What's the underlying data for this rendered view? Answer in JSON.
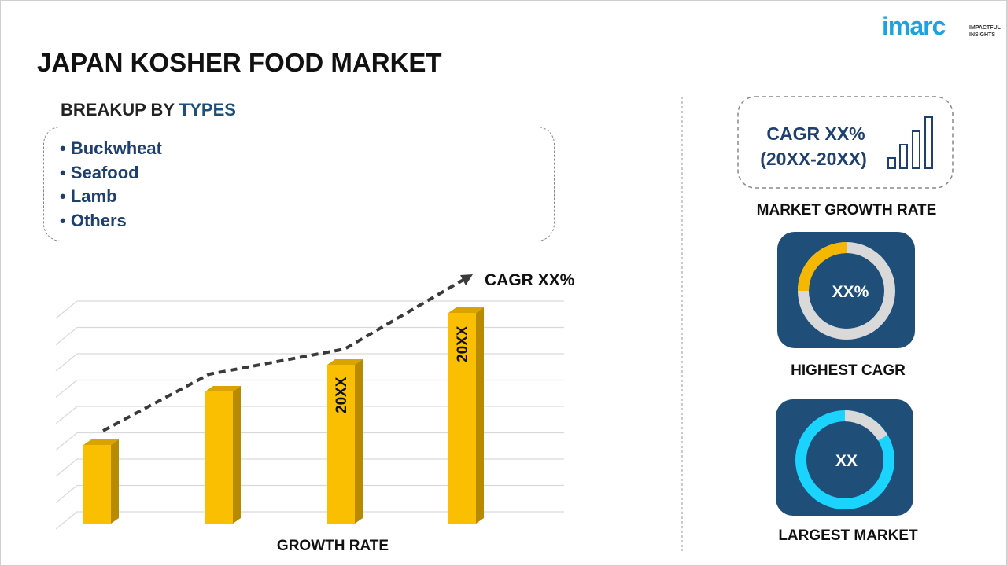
{
  "header": {
    "title": "JAPAN KOSHER FOOD MARKET",
    "logo": "imarc",
    "logo_tagline": [
      "IMPACTFUL",
      "INSIGHTS"
    ]
  },
  "breakup": {
    "heading": "BREAKUP BY",
    "heading_highlight": "TYPES",
    "items": [
      "Buckwheat",
      "Seafood",
      "Lamb",
      "Others"
    ]
  },
  "growth_chart": {
    "trend_label": "CAGR XX%",
    "bar_labels": [
      "20XX",
      "20XX"
    ],
    "caption": "GROWTH RATE"
  },
  "market_growth": {
    "value": "CAGR XX%",
    "period": "(20XX-20XX)",
    "caption": "MARKET GROWTH RATE"
  },
  "highest_cagr": {
    "value": "XX%",
    "caption": "HIGHEST CAGR"
  },
  "largest_market": {
    "value": "XX",
    "caption": "LARGEST MARKET"
  }
}
